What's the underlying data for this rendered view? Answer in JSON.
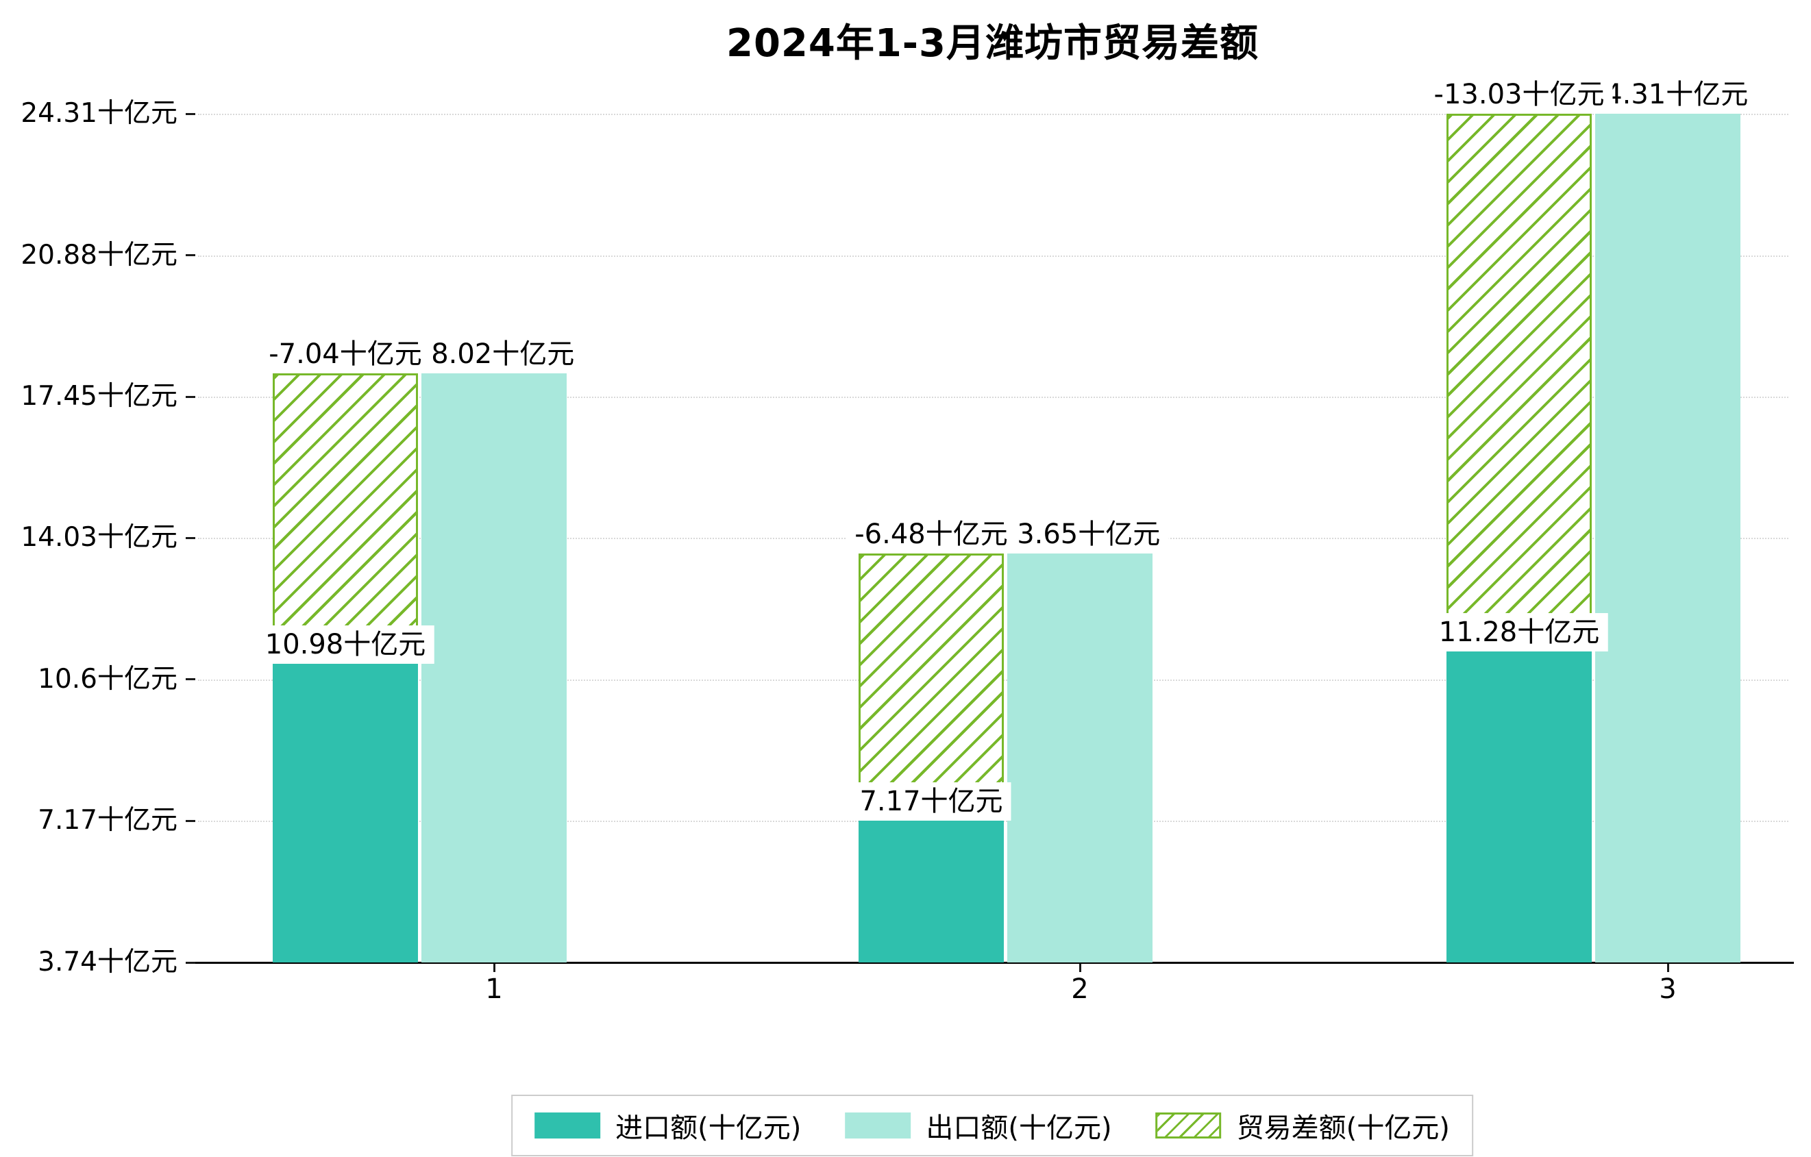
{
  "title": "2024年1-3月潍坊市贸易差额",
  "chart_data": {
    "type": "bar",
    "title": "2024年1-3月潍坊市贸易差额",
    "categories": [
      "1",
      "2",
      "3"
    ],
    "series": [
      {
        "name": "进口额(十亿元)",
        "values": [
          10.98,
          7.17,
          11.28
        ],
        "labels": [
          "10.98十亿元",
          "7.17十亿元",
          "11.28十亿元"
        ],
        "color": "#2fc0ad",
        "style": "solid"
      },
      {
        "name": "出口额(十亿元)",
        "values": [
          18.02,
          13.65,
          24.31
        ],
        "labels": [
          "18.02十亿元",
          "13.65十亿元",
          "24.31十亿元"
        ],
        "color": "#a9e8dc",
        "style": "solid"
      },
      {
        "name": "贸易差额(十亿元)",
        "values": [
          -7.04,
          -6.48,
          -13.03
        ],
        "labels": [
          "-7.04十亿元",
          "-6.48十亿元",
          "-13.03十亿元"
        ],
        "color": "#77b82a",
        "style": "hatched"
      }
    ],
    "y_ticks": [
      "3.74十亿元",
      "7.17十亿元",
      "10.6十亿元",
      "14.03十亿元",
      "17.45十亿元",
      "20.88十亿元",
      "24.31十亿元"
    ],
    "y_tick_values": [
      3.74,
      7.17,
      10.6,
      14.03,
      17.45,
      20.88,
      24.31
    ],
    "ylim": [
      3.74,
      24.31
    ],
    "xlabel": "",
    "ylabel": "",
    "grid": true,
    "legend_position": "bottom",
    "colors": {
      "background": "#ffffff",
      "gridline": "#d9d9d9",
      "axis": "#000000",
      "import_bar": "#2fc0ad",
      "export_bar": "#a9e8dc",
      "balance_hatch": "#77b82a"
    }
  }
}
